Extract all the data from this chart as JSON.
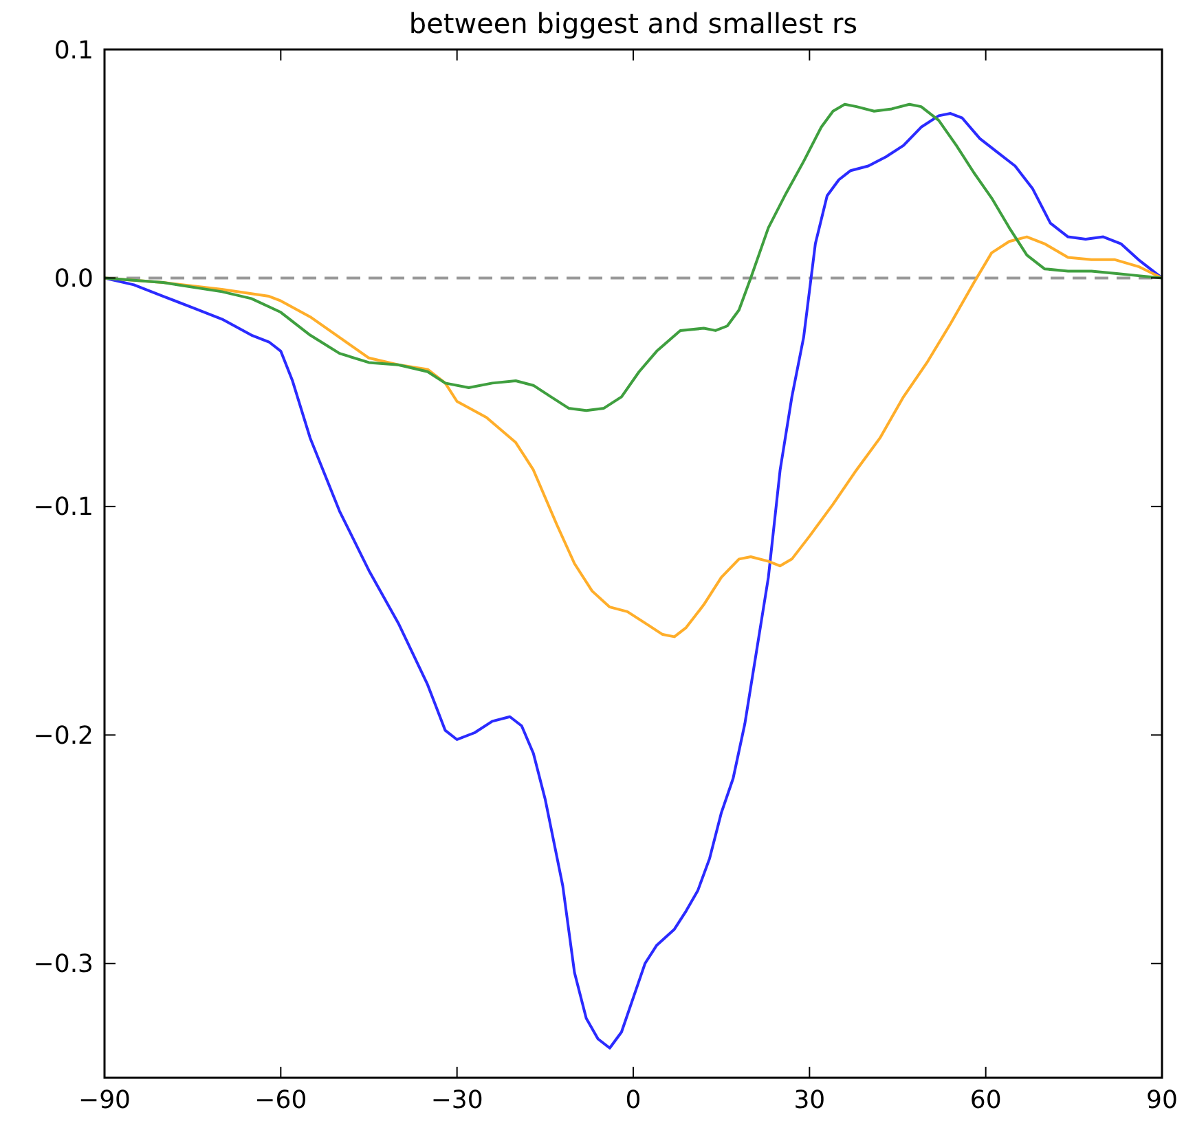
{
  "chart_data": {
    "type": "line",
    "title": "between biggest and smallest rs",
    "xlim": [
      -90,
      90
    ],
    "ylim": [
      -0.35,
      0.1
    ],
    "xticks": [
      {
        "value": -90,
        "label": "−90"
      },
      {
        "value": -60,
        "label": "−60"
      },
      {
        "value": -30,
        "label": "−30"
      },
      0,
      30,
      60,
      90
    ],
    "yticks": [
      0.1,
      {
        "value": 0,
        "label": "0.0"
      },
      {
        "value": -0.1,
        "label": "−0.1"
      },
      {
        "value": -0.2,
        "label": "−0.2"
      },
      {
        "value": -0.3,
        "label": "−0.3"
      }
    ],
    "marker": "none",
    "line_style": "solid",
    "ref_lines": [
      {
        "axis": "y",
        "value": 0,
        "color": "#999999",
        "line_style": "dashed"
      }
    ],
    "series": [
      {
        "color": "#2b2bff",
        "x": [
          -90,
          -85,
          -80,
          -75,
          -70,
          -65,
          -62,
          -60,
          -58,
          -55,
          -50,
          -45,
          -40,
          -35,
          -32,
          -30,
          -27,
          -24,
          -21,
          -19,
          -17,
          -15,
          -12,
          -10,
          -8,
          -6,
          -4,
          -2,
          0,
          2,
          4,
          7,
          9,
          11,
          13,
          15,
          17,
          19,
          21,
          23,
          25,
          27,
          29,
          31,
          33,
          35,
          37,
          40,
          43,
          46,
          49,
          52,
          54,
          56,
          59,
          62,
          65,
          68,
          71,
          74,
          77,
          80,
          83,
          86,
          90
        ],
        "values": [
          0,
          -0.003,
          -0.008,
          -0.013,
          -0.018,
          -0.025,
          -0.028,
          -0.032,
          -0.045,
          -0.07,
          -0.102,
          -0.128,
          -0.151,
          -0.178,
          -0.198,
          -0.202,
          -0.199,
          -0.194,
          -0.192,
          -0.196,
          -0.208,
          -0.228,
          -0.266,
          -0.304,
          -0.324,
          -0.333,
          -0.337,
          -0.33,
          -0.315,
          -0.3,
          -0.292,
          -0.285,
          -0.277,
          -0.268,
          -0.254,
          -0.234,
          -0.219,
          -0.195,
          -0.163,
          -0.131,
          -0.084,
          -0.052,
          -0.026,
          0.015,
          0.036,
          0.043,
          0.047,
          0.049,
          0.053,
          0.058,
          0.066,
          0.071,
          0.072,
          0.07,
          0.061,
          0.055,
          0.049,
          0.039,
          0.024,
          0.018,
          0.017,
          0.018,
          0.015,
          0.008,
          0
        ]
      },
      {
        "color": "#ffae2a",
        "x": [
          -90,
          -80,
          -70,
          -62,
          -60,
          -55,
          -50,
          -45,
          -40,
          -35,
          -32,
          -30,
          -25,
          -20,
          -17,
          -13,
          -10,
          -7,
          -4,
          -1,
          2,
          5,
          7,
          9,
          12,
          15,
          18,
          20,
          23,
          25,
          27,
          30,
          34,
          38,
          42,
          46,
          50,
          54,
          58,
          61,
          64,
          67,
          70,
          74,
          78,
          82,
          86,
          90
        ],
        "values": [
          0,
          -0.002,
          -0.005,
          -0.008,
          -0.01,
          -0.017,
          -0.026,
          -0.035,
          -0.038,
          -0.04,
          -0.046,
          -0.054,
          -0.061,
          -0.072,
          -0.084,
          -0.108,
          -0.125,
          -0.137,
          -0.144,
          -0.146,
          -0.151,
          -0.156,
          -0.157,
          -0.153,
          -0.143,
          -0.131,
          -0.123,
          -0.122,
          -0.124,
          -0.126,
          -0.123,
          -0.113,
          -0.099,
          -0.084,
          -0.07,
          -0.052,
          -0.037,
          -0.02,
          -0.002,
          0.011,
          0.016,
          0.018,
          0.015,
          0.009,
          0.008,
          0.008,
          0.005,
          0
        ]
      },
      {
        "color": "#3f9f3f",
        "x": [
          -90,
          -80,
          -70,
          -65,
          -60,
          -55,
          -50,
          -45,
          -40,
          -35,
          -32,
          -28,
          -24,
          -20,
          -17,
          -14,
          -11,
          -8,
          -5,
          -2,
          1,
          4,
          8,
          12,
          14,
          16,
          18,
          20,
          23,
          26,
          29,
          32,
          34,
          36,
          38,
          41,
          44,
          47,
          49,
          52,
          55,
          58,
          61,
          64,
          67,
          70,
          74,
          78,
          82,
          86,
          90
        ],
        "values": [
          0,
          -0.002,
          -0.006,
          -0.009,
          -0.015,
          -0.025,
          -0.033,
          -0.037,
          -0.038,
          -0.041,
          -0.046,
          -0.048,
          -0.046,
          -0.045,
          -0.047,
          -0.052,
          -0.057,
          -0.058,
          -0.057,
          -0.052,
          -0.041,
          -0.032,
          -0.023,
          -0.022,
          -0.023,
          -0.021,
          -0.014,
          0,
          0.022,
          0.037,
          0.051,
          0.066,
          0.073,
          0.076,
          0.075,
          0.073,
          0.074,
          0.076,
          0.075,
          0.069,
          0.058,
          0.046,
          0.035,
          0.022,
          0.01,
          0.004,
          0.003,
          0.003,
          0.002,
          0.001,
          0
        ]
      }
    ]
  }
}
